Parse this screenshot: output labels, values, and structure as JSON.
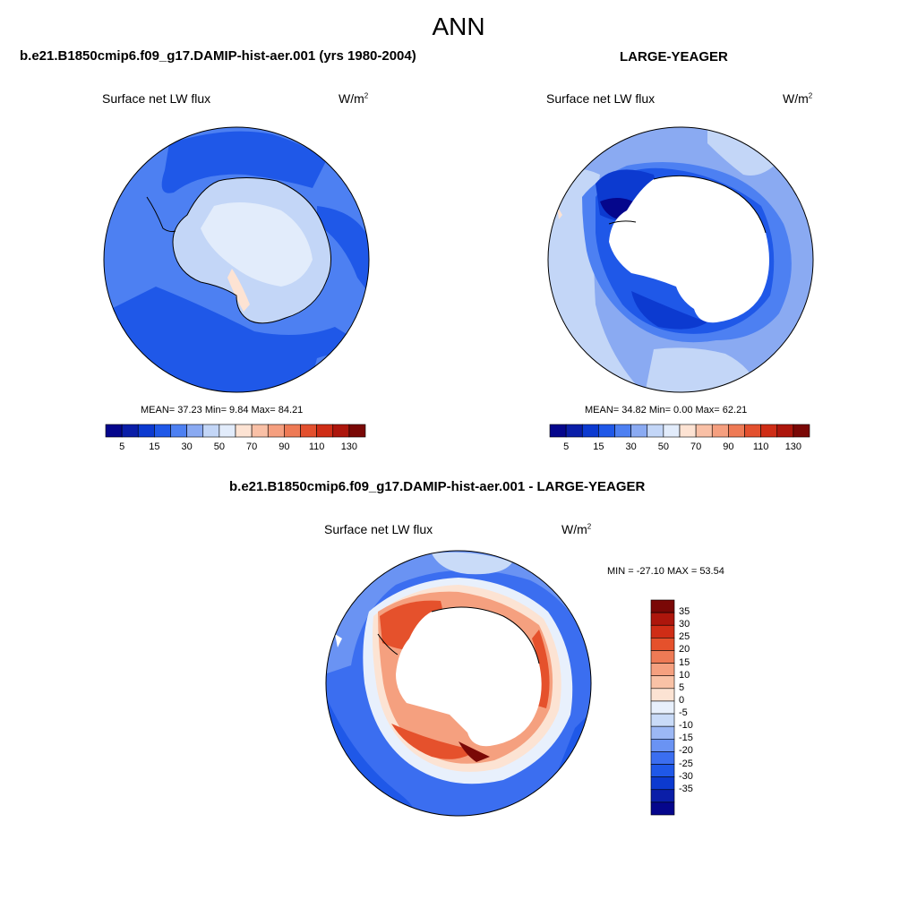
{
  "main_title": "ANN",
  "palettes": {
    "abs": [
      "#05068c",
      "#0a1ea8",
      "#0c3ad0",
      "#1f58e8",
      "#4d80f2",
      "#8aaaf2",
      "#c3d6f7",
      "#e2ecfb",
      "#fde3d3",
      "#f9c0a6",
      "#f59f7f",
      "#ee7a55",
      "#e3502e",
      "#cf2d16",
      "#ad160c",
      "#7a0806"
    ],
    "diff": [
      "#05068c",
      "#0a1ea8",
      "#0c3ad0",
      "#1f58e8",
      "#3b6ef0",
      "#6a93f3",
      "#9cb8f5",
      "#c9dbf8",
      "#e8f0fc",
      "#fce3d3",
      "#f9c2a6",
      "#f5a07f",
      "#ee7a55",
      "#e5512c",
      "#cf2d16",
      "#ad160c",
      "#7a0806"
    ]
  },
  "panels": {
    "left": {
      "title": "b.e21.B1850cmip6.f09_g17.DAMIP-hist-aer.001 (yrs 1980-2004)",
      "field": "Surface net LW flux",
      "units_base": "W/m",
      "units_exp": "2",
      "stats": "MEAN=  37.23  Min=   9.84  Max=  84.21",
      "cbar_ticks": [
        "5",
        "15",
        "30",
        "50",
        "70",
        "90",
        "110",
        "130"
      ]
    },
    "right": {
      "title": "LARGE-YEAGER",
      "field": "Surface net LW flux",
      "units_base": "W/m",
      "units_exp": "2",
      "stats": "MEAN=  34.82  Min=   0.00  Max=  62.21",
      "cbar_ticks": [
        "5",
        "15",
        "30",
        "50",
        "70",
        "90",
        "110",
        "130"
      ]
    },
    "diff": {
      "title": "b.e21.B1850cmip6.f09_g17.DAMIP-hist-aer.001 - LARGE-YEAGER",
      "field": "Surface net LW flux",
      "units_base": "W/m",
      "units_exp": "2",
      "stats": "MIN = -27.10 MAX =  53.54",
      "cbar_ticks": [
        "35",
        "30",
        "25",
        "20",
        "15",
        "10",
        "5",
        "0",
        "-5",
        "-10",
        "-15",
        "-20",
        "-25",
        "-30",
        "-35"
      ]
    }
  }
}
